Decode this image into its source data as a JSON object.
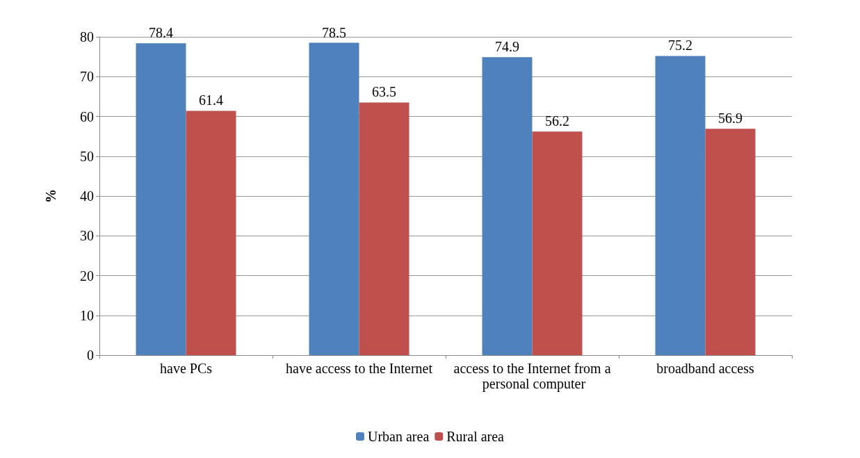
{
  "chart_data": {
    "type": "bar",
    "ylabel": "%",
    "categories": [
      "have PCs",
      "have access to the Internet",
      "access to the Internet from a personal computer",
      "broadband access"
    ],
    "series": [
      {
        "name": "Urban area",
        "color": "#4f81bd",
        "values": [
          78.4,
          78.5,
          74.9,
          75.2
        ]
      },
      {
        "name": "Rural area",
        "color": "#c0504d",
        "values": [
          61.4,
          63.5,
          56.2,
          56.9
        ]
      }
    ],
    "ylim": [
      0,
      80
    ],
    "yticks": [
      0,
      10,
      20,
      30,
      40,
      50,
      60,
      70,
      80
    ],
    "grid": "y",
    "legend": "bottom",
    "data_labels": true
  }
}
